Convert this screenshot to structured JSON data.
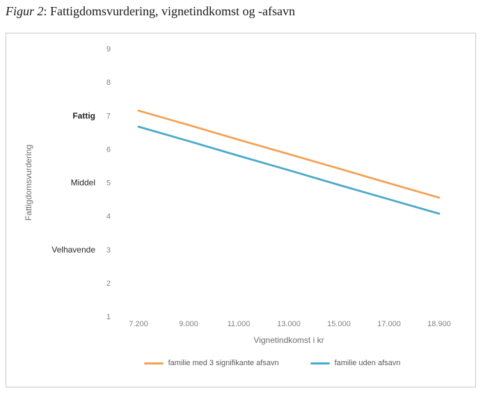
{
  "figure": {
    "label": "Figur 2",
    "title_rest": ": Fattigdomsvurdering, vignetindkomst og -afsavn"
  },
  "chart_data": {
    "type": "line",
    "x_categories": [
      "7.200",
      "9.000",
      "11.000",
      "13.000",
      "15.000",
      "17.000",
      "18.900"
    ],
    "xlabel": "Vignetindkomst i kr",
    "ylabel": "Fattigdomsvurdering",
    "ylim": [
      1,
      9
    ],
    "y_ticks": [
      9,
      8,
      7,
      6,
      5,
      4,
      3,
      2,
      1
    ],
    "y_category_labels": [
      {
        "label": "Fattig",
        "value": 7,
        "bold": true
      },
      {
        "label": "Middel",
        "value": 5,
        "bold": false
      },
      {
        "label": "Velhavende",
        "value": 3,
        "bold": false
      }
    ],
    "grid": false,
    "legend_position": "bottom",
    "series": [
      {
        "name": "familie med 3 signifikante afsavn",
        "color": "#F2A154",
        "values": [
          7.15,
          6.72,
          6.28,
          5.85,
          5.42,
          4.98,
          4.55
        ]
      },
      {
        "name": "familie uden afsavn",
        "color": "#4AA9CB",
        "values": [
          6.67,
          6.24,
          5.8,
          5.37,
          4.93,
          4.5,
          4.07
        ]
      }
    ]
  }
}
